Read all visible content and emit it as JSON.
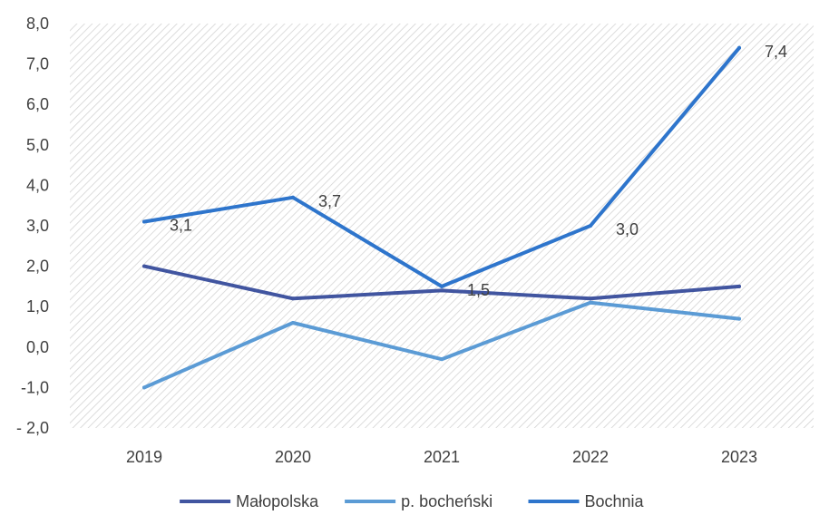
{
  "chart_data": {
    "type": "line",
    "categories": [
      "2019",
      "2020",
      "2021",
      "2022",
      "2023"
    ],
    "y_tick_labels": [
      "- 2,0",
      "-1,0",
      "0,0",
      "1,0",
      "2,0",
      "3,0",
      "4,0",
      "5,0",
      "6,0",
      "7,0",
      "8,0"
    ],
    "ylim": [
      -2,
      8
    ],
    "y_step": 1,
    "grid": false,
    "plot_background": "diagonal-hatch",
    "legend_position": "bottom",
    "series": [
      {
        "name": "Małopolska",
        "values": [
          2.0,
          1.2,
          1.4,
          1.2,
          1.5
        ],
        "color": "#4155A0",
        "data_labels": []
      },
      {
        "name": "p. bocheński",
        "values": [
          -1.0,
          0.6,
          -0.3,
          1.1,
          0.7
        ],
        "color": "#5B9BD5",
        "data_labels": []
      },
      {
        "name": "Bochnia",
        "values": [
          3.1,
          3.7,
          1.5,
          3.0,
          7.4
        ],
        "color": "#2E75CC",
        "data_labels": [
          "3,1",
          "3,7",
          "1,5",
          "3,0",
          "7,4"
        ]
      }
    ]
  }
}
